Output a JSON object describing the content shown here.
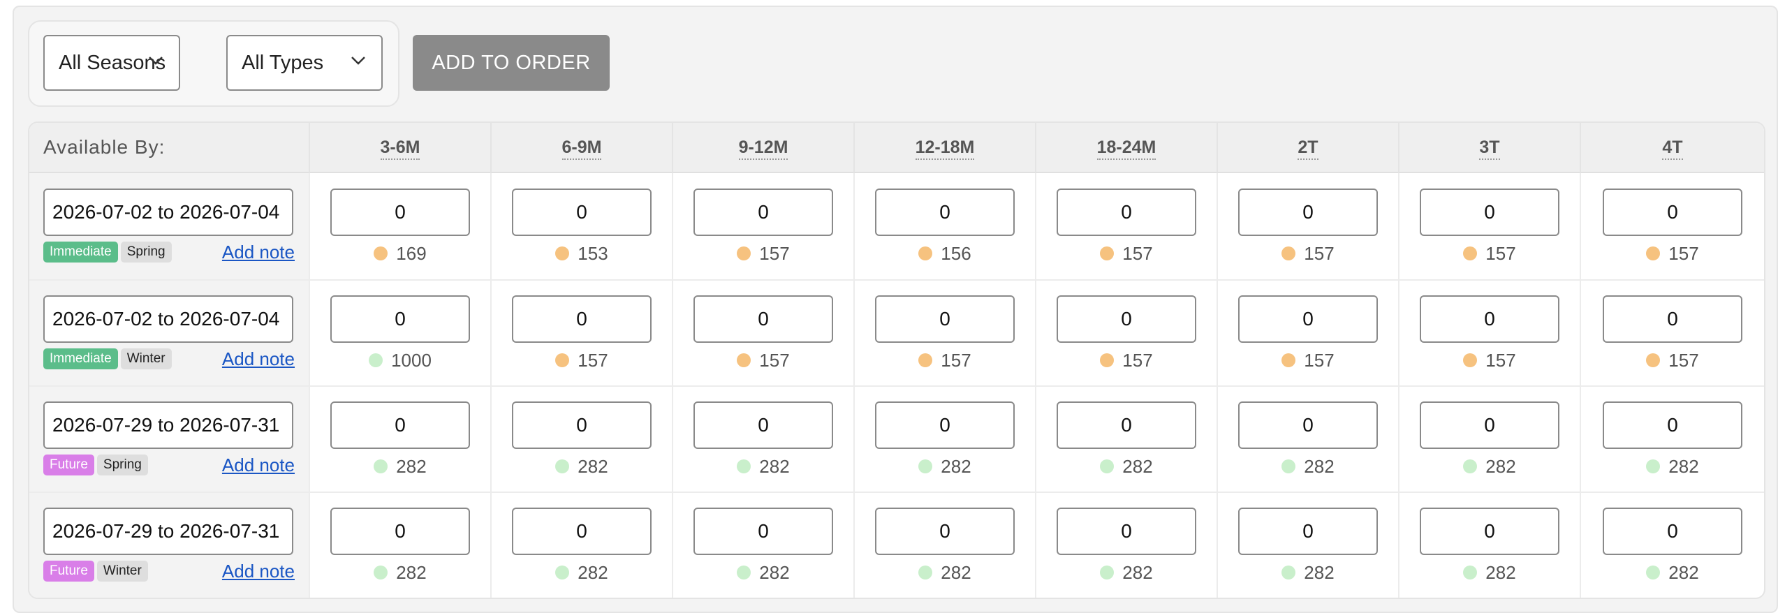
{
  "filters": {
    "season_label": "All Seasons",
    "type_label": "All Types",
    "add_button": "ADD TO ORDER"
  },
  "table": {
    "header_label": "Available By:",
    "sizes": [
      "3-6M",
      "6-9M",
      "9-12M",
      "12-18M",
      "18-24M",
      "2T",
      "3T",
      "4T"
    ],
    "rows": [
      {
        "date_range": "2026-07-02 to 2026-07-04",
        "availability": "Immediate",
        "season": "Spring",
        "note_label": "Add note",
        "quantities": [
          "0",
          "0",
          "0",
          "0",
          "0",
          "0",
          "0",
          "0"
        ],
        "stock": [
          "169",
          "153",
          "157",
          "156",
          "157",
          "157",
          "157",
          "157"
        ],
        "stock_level": [
          "low",
          "low",
          "low",
          "low",
          "low",
          "low",
          "low",
          "low"
        ]
      },
      {
        "date_range": "2026-07-02 to 2026-07-04",
        "availability": "Immediate",
        "season": "Winter",
        "note_label": "Add note",
        "quantities": [
          "0",
          "0",
          "0",
          "0",
          "0",
          "0",
          "0",
          "0"
        ],
        "stock": [
          "1000",
          "157",
          "157",
          "157",
          "157",
          "157",
          "157",
          "157"
        ],
        "stock_level": [
          "high",
          "low",
          "low",
          "low",
          "low",
          "low",
          "low",
          "low"
        ]
      },
      {
        "date_range": "2026-07-29 to 2026-07-31",
        "availability": "Future",
        "season": "Spring",
        "note_label": "Add note",
        "quantities": [
          "0",
          "0",
          "0",
          "0",
          "0",
          "0",
          "0",
          "0"
        ],
        "stock": [
          "282",
          "282",
          "282",
          "282",
          "282",
          "282",
          "282",
          "282"
        ],
        "stock_level": [
          "high",
          "high",
          "high",
          "high",
          "high",
          "high",
          "high",
          "high"
        ]
      },
      {
        "date_range": "2026-07-29 to 2026-07-31",
        "availability": "Future",
        "season": "Winter",
        "note_label": "Add note",
        "quantities": [
          "0",
          "0",
          "0",
          "0",
          "0",
          "0",
          "0",
          "0"
        ],
        "stock": [
          "282",
          "282",
          "282",
          "282",
          "282",
          "282",
          "282",
          "282"
        ],
        "stock_level": [
          "high",
          "high",
          "high",
          "high",
          "high",
          "high",
          "high",
          "high"
        ]
      }
    ]
  },
  "colors": {
    "stock_low": "#f6c27f",
    "stock_high": "#c9efcb",
    "immediate_badge": "#5bbd8a",
    "future_badge": "#d97ee8",
    "add_button_bg": "#8a8a8a",
    "link": "#1a56c4"
  },
  "icons": {
    "select_chevron": "chevron-down-icon",
    "stock_indicator": "status-dot-icon"
  }
}
